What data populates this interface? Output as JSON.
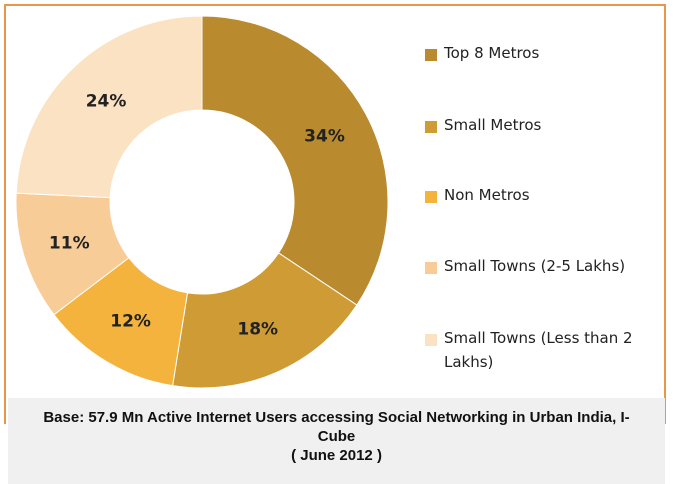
{
  "chart_data": {
    "type": "donut",
    "categories": [
      "Top 8 Metros",
      "Small Metros",
      "Non Metros",
      "Small Towns (2-5 Lakhs)",
      "Small Towns (Less than 2 Lakhs)"
    ],
    "values": [
      34,
      18,
      12,
      11,
      24
    ],
    "value_labels": [
      "34%",
      "18%",
      "12%",
      "11%",
      "24%"
    ],
    "colors": [
      "#b98a2e",
      "#cf9b35",
      "#f4b33c",
      "#f7cc97",
      "#fbe2c2"
    ],
    "note": "Base: 57.9 Mn Active Internet Users accessing Social Networking in Urban India, I-Cube",
    "date": "( June 2012 )"
  }
}
